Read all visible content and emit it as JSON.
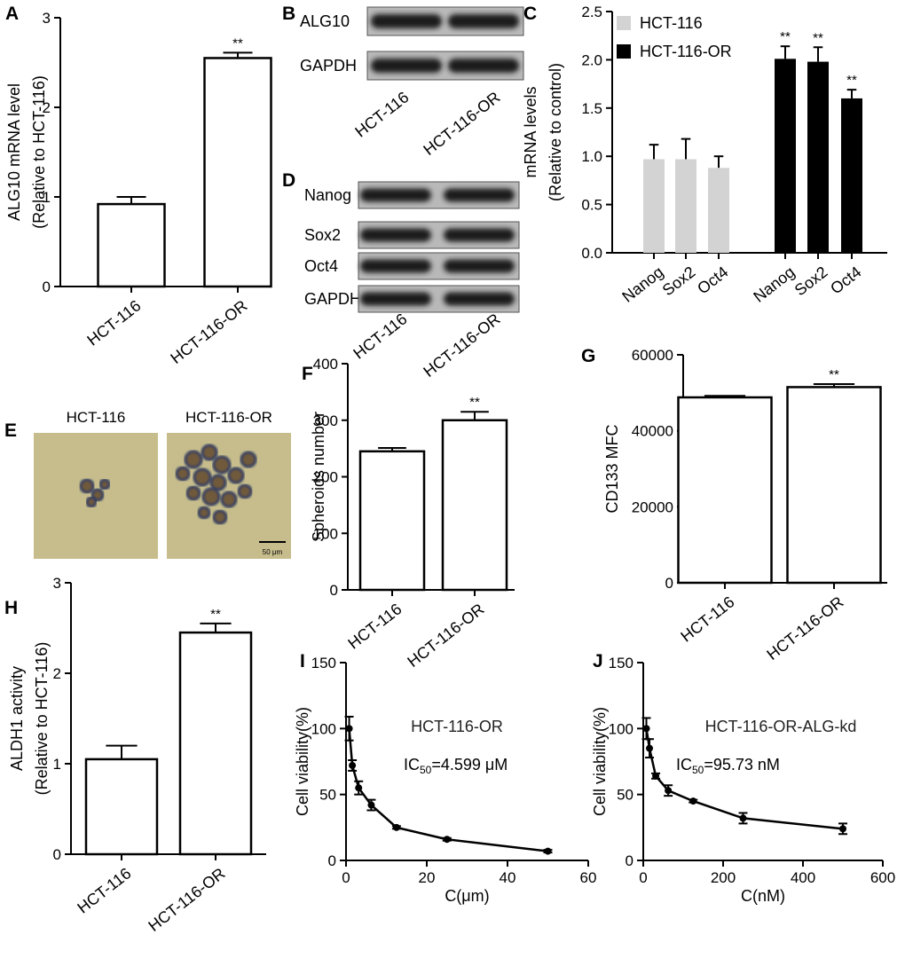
{
  "chart_data": [
    {
      "type": "bar",
      "panel": "A",
      "categories": [
        "HCT-116",
        "HCT-116-OR"
      ],
      "values": [
        0.92,
        2.55
      ],
      "errors": [
        0.08,
        0.06
      ],
      "value_annotations": [
        null,
        "**"
      ],
      "color": "#ffffff",
      "ylim": [
        0,
        3
      ],
      "yticks": [
        0,
        1,
        2,
        3
      ],
      "ylabel": [
        "ALG10 mRNA level",
        "(Relative to HCT-116)"
      ]
    },
    {
      "type": "blot",
      "panel": "B",
      "rows": [
        "ALG10",
        "GAPDH"
      ],
      "columns": [
        "HCT-116",
        "HCT-116-OR"
      ]
    },
    {
      "type": "bar",
      "panel": "C",
      "categories": [
        "Nanog",
        "Sox2",
        "Oct4",
        "Nanog",
        "Sox2",
        "Oct4"
      ],
      "series": [
        {
          "name": "HCT-116",
          "color": "#d3d3d3",
          "values": [
            0.97,
            0.97,
            0.88,
            null,
            null,
            null
          ],
          "errors": [
            0.15,
            0.21,
            0.12,
            null,
            null,
            null
          ],
          "value_annotations": [
            null,
            null,
            null,
            null,
            null,
            null
          ]
        },
        {
          "name": "HCT-116-OR",
          "color": "#000000",
          "values": [
            null,
            null,
            null,
            2.01,
            1.98,
            1.6
          ],
          "errors": [
            null,
            null,
            null,
            0.13,
            0.15,
            0.09
          ],
          "value_annotations": [
            null,
            null,
            null,
            "**",
            "**",
            "**"
          ]
        }
      ],
      "legend": "upper left",
      "ylim": [
        0,
        2.5
      ],
      "yticks": [
        {
          "value": 0,
          "label": "0.0"
        },
        0.5,
        {
          "value": 1,
          "label": "1.0"
        },
        1.5,
        {
          "value": 2,
          "label": "2.0"
        },
        2.5
      ],
      "ylabel": [
        "mRNA levels",
        "(Relative to control)"
      ]
    },
    {
      "type": "blot",
      "panel": "D",
      "rows": [
        "Nanog",
        "Sox2",
        "Oct4",
        "GAPDH"
      ],
      "columns": [
        "HCT-116",
        "HCT-116-OR"
      ]
    },
    {
      "type": "image",
      "panel": "E",
      "columns": [
        "HCT-116",
        "HCT-116-OR"
      ],
      "scale_bar": "50 μm"
    },
    {
      "type": "bar",
      "panel": "F",
      "categories": [
        "HCT-116",
        "HCT-116-OR"
      ],
      "values": [
        245,
        300
      ],
      "errors": [
        6,
        15
      ],
      "value_annotations": [
        null,
        "**"
      ],
      "color": "#ffffff",
      "ylim": [
        0,
        400
      ],
      "yticks": [
        0,
        100,
        200,
        300,
        400
      ],
      "ylabel": [
        "Spheroids number"
      ]
    },
    {
      "type": "bar",
      "panel": "G",
      "categories": [
        "HCT-116",
        "HCT-116-OR"
      ],
      "values": [
        48800,
        51500
      ],
      "errors": [
        400,
        800
      ],
      "value_annotations": [
        null,
        "**"
      ],
      "color": "#ffffff",
      "ylim": [
        0,
        60000
      ],
      "yticks": [
        0,
        20000,
        40000,
        60000
      ],
      "ylabel": [
        "CD133 MFC"
      ]
    },
    {
      "type": "bar",
      "panel": "H",
      "categories": [
        "HCT-116",
        "HCT-116-OR"
      ],
      "values": [
        1.05,
        2.45
      ],
      "errors": [
        0.15,
        0.1
      ],
      "value_annotations": [
        null,
        "**"
      ],
      "color": "#ffffff",
      "ylim": [
        0,
        3
      ],
      "yticks": [
        0,
        1,
        2,
        3
      ],
      "ylabel": [
        "ALDH1 activity",
        "(Relative to HCT-116)"
      ]
    },
    {
      "type": "line",
      "panel": "I",
      "x": [
        0.78,
        1.56,
        3.125,
        6.25,
        12.5,
        25,
        50
      ],
      "values": [
        100,
        72,
        55,
        42,
        25,
        16,
        7
      ],
      "errors": [
        9,
        4,
        5,
        4,
        1,
        1,
        1
      ],
      "color": "#000000",
      "xlim": [
        0,
        60
      ],
      "xticks": [
        0,
        20,
        40,
        60
      ],
      "ylim": [
        0,
        150
      ],
      "yticks": [
        0,
        50,
        100,
        150
      ],
      "xlabel": "C(μm)",
      "ylabel": [
        "Cell viability(%)"
      ],
      "annotation": "HCT-116-OR",
      "ic50": [
        "IC",
        "50",
        "=4.599 μM"
      ]
    },
    {
      "type": "line",
      "panel": "J",
      "x": [
        7.8,
        15.6,
        31.25,
        62.5,
        125,
        250,
        500
      ],
      "values": [
        100,
        85,
        64,
        53,
        45,
        32,
        24
      ],
      "errors": [
        8,
        7,
        2,
        4,
        1,
        4,
        4
      ],
      "color": "#000000",
      "xlim": [
        0,
        600
      ],
      "xticks": [
        0,
        200,
        400,
        600
      ],
      "ylim": [
        0,
        150
      ],
      "yticks": [
        0,
        50,
        100,
        150
      ],
      "xlabel": "C(nM)",
      "ylabel": [
        "Cell viability(%)"
      ],
      "annotation": "HCT-116-OR-ALG-kd",
      "ic50": [
        "IC",
        "50",
        "=95.73 nM"
      ]
    }
  ]
}
